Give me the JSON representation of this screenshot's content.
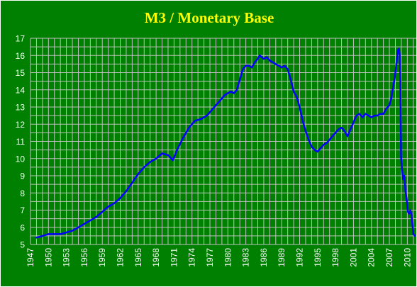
{
  "colors": {
    "background": "#008000",
    "gridline": "#c0c0c0",
    "line": "#0000ff",
    "title": "#ffff00",
    "ticks": "#ffffff",
    "outer": "#000000"
  },
  "chart_data": {
    "type": "line",
    "title": "M3 / Monetary Base",
    "xlabel": "",
    "ylabel": "",
    "xlim": [
      1947,
      2011.5
    ],
    "ylim": [
      5,
      17
    ],
    "grid": true,
    "x_ticks": [
      "1947",
      "1950",
      "1953",
      "1956",
      "1959",
      "1962",
      "1965",
      "1968",
      "1971",
      "1974",
      "1977",
      "1980",
      "1983",
      "1986",
      "1989",
      "1992",
      "1995",
      "1998",
      "2001",
      "2004",
      "2007",
      "2010"
    ],
    "y_ticks": [
      "5",
      "6",
      "7",
      "8",
      "9",
      "10",
      "11",
      "12",
      "13",
      "14",
      "15",
      "16",
      "17"
    ],
    "series": [
      {
        "x": [
          1948.0,
          1949.0,
          1950.0,
          1951.0,
          1952.0,
          1953.0,
          1954.0,
          1955.0,
          1956.0,
          1957.0,
          1958.0,
          1959.0,
          1960.0,
          1961.0,
          1962.0,
          1963.0,
          1964.0,
          1965.0,
          1966.0,
          1967.0,
          1968.0,
          1969.0,
          1970.0,
          1970.8,
          1971.5,
          1972.5,
          1973.5,
          1974.5,
          1975.5,
          1976.5,
          1977.5,
          1978.5,
          1979.5,
          1980.5,
          1981.0,
          1981.5,
          1982.0,
          1982.5,
          1983.0,
          1983.5,
          1984.0,
          1984.5,
          1985.0,
          1985.3,
          1985.7,
          1986.0,
          1986.5,
          1987.0,
          1987.5,
          1988.0,
          1988.5,
          1989.0,
          1989.5,
          1990.0,
          1990.5,
          1991.0,
          1991.5,
          1992.0,
          1992.5,
          1993.0,
          1993.5,
          1994.0,
          1994.5,
          1995.0,
          1995.5,
          1996.0,
          1996.5,
          1997.0,
          1997.5,
          1998.0,
          1998.5,
          1999.0,
          1999.5,
          2000.0,
          2000.5,
          2001.0,
          2001.5,
          2002.0,
          2002.5,
          2003.0,
          2003.5,
          2004.0,
          2004.5,
          2005.0,
          2005.5,
          2006.0,
          2006.5,
          2007.0,
          2007.3,
          2007.6,
          2007.9,
          2008.2,
          2008.4,
          2008.6,
          2008.75,
          2008.85,
          2008.95,
          2009.1,
          2009.3,
          2009.5,
          2009.7,
          2009.9,
          2010.1,
          2010.3,
          2010.5,
          2010.7,
          2010.85,
          2011.0,
          2011.3
        ],
        "y": [
          5.4,
          5.5,
          5.6,
          5.6,
          5.6,
          5.7,
          5.8,
          6.0,
          6.2,
          6.4,
          6.6,
          6.9,
          7.2,
          7.4,
          7.7,
          8.1,
          8.6,
          9.1,
          9.5,
          9.8,
          10.0,
          10.3,
          10.2,
          9.9,
          10.5,
          11.2,
          11.8,
          12.2,
          12.3,
          12.5,
          12.9,
          13.3,
          13.7,
          13.9,
          13.8,
          14.0,
          14.6,
          15.2,
          15.4,
          15.4,
          15.3,
          15.6,
          15.8,
          16.0,
          15.9,
          15.8,
          15.9,
          15.7,
          15.6,
          15.5,
          15.4,
          15.3,
          15.4,
          15.2,
          14.6,
          13.9,
          13.6,
          13.0,
          12.2,
          11.6,
          11.1,
          10.7,
          10.5,
          10.4,
          10.6,
          10.8,
          10.9,
          11.1,
          11.3,
          11.5,
          11.7,
          11.8,
          11.6,
          11.3,
          11.7,
          12.1,
          12.5,
          12.6,
          12.4,
          12.6,
          12.5,
          12.4,
          12.5,
          12.5,
          12.6,
          12.6,
          12.9,
          13.1,
          13.5,
          14.1,
          14.7,
          15.6,
          16.3,
          16.4,
          16.0,
          14.5,
          10.1,
          9.4,
          8.8,
          9.0,
          8.1,
          7.6,
          6.9,
          6.8,
          7.0,
          6.7,
          6.2,
          5.6,
          5.5
        ]
      }
    ]
  }
}
